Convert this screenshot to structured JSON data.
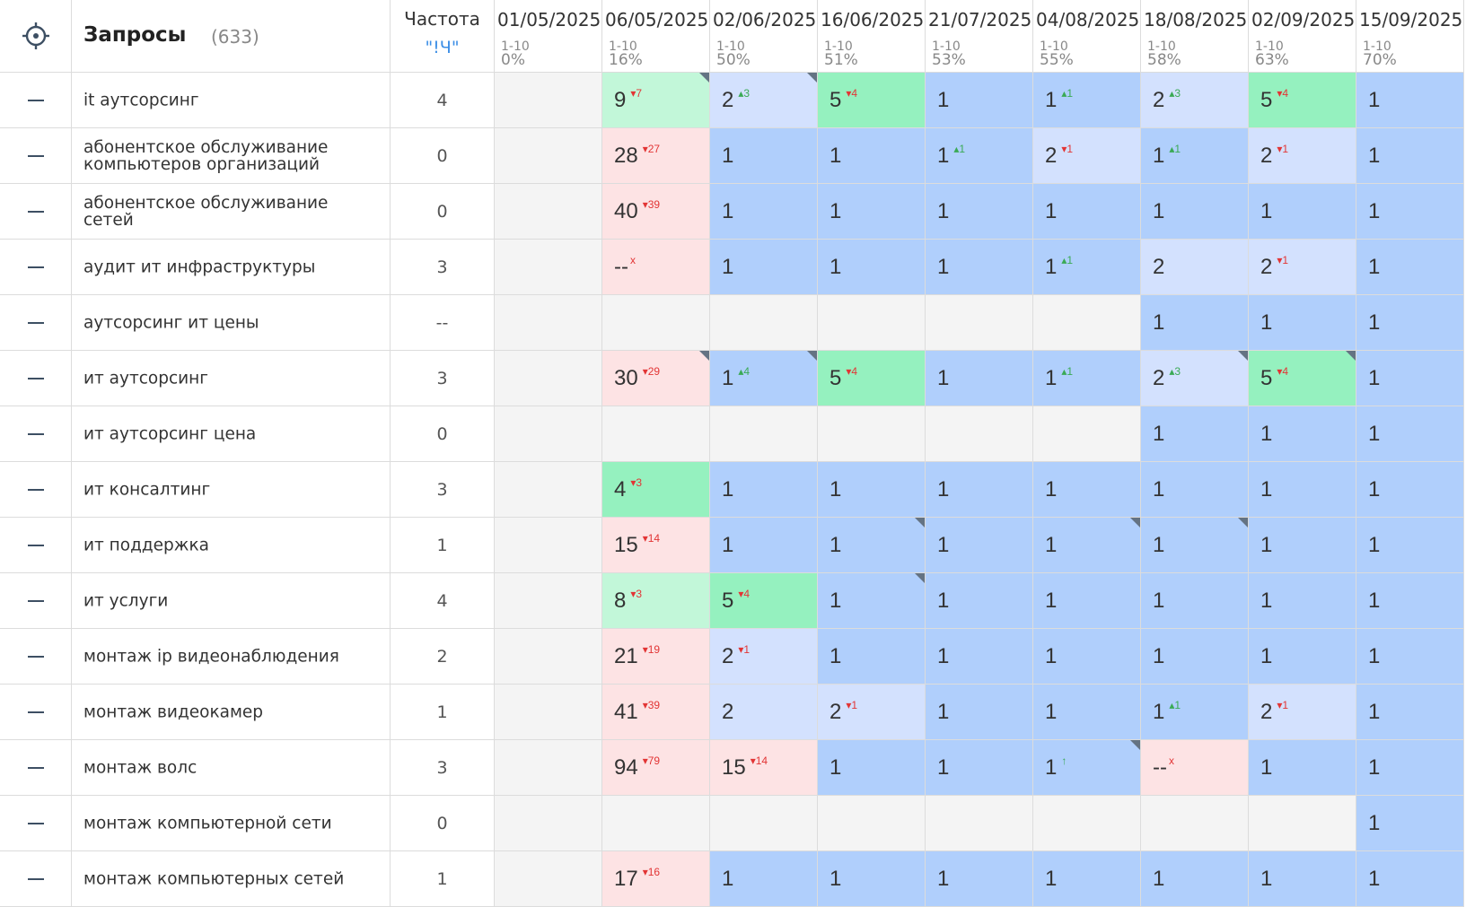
{
  "header": {
    "queries_label": "Запросы",
    "queries_count": "(633)",
    "freq_label": "Частота",
    "freq_sub": "\"!Ч\""
  },
  "colors": {
    "empty": "#f4f4f4",
    "light_red": "#fde3e4",
    "light_green": "#c2f7d9",
    "green": "#95f1bf",
    "light_blue": "#d3e1fe",
    "blue": "#b0cffc",
    "up_delta": "#3aaa55",
    "down_delta": "#e23535"
  },
  "dates": [
    {
      "date": "01/05/2025",
      "range": "1-10",
      "pct": "0%"
    },
    {
      "date": "06/05/2025",
      "range": "1-10",
      "pct": "16%"
    },
    {
      "date": "02/06/2025",
      "range": "1-10",
      "pct": "50%"
    },
    {
      "date": "16/06/2025",
      "range": "1-10",
      "pct": "51%"
    },
    {
      "date": "21/07/2025",
      "range": "1-10",
      "pct": "53%"
    },
    {
      "date": "04/08/2025",
      "range": "1-10",
      "pct": "55%"
    },
    {
      "date": "18/08/2025",
      "range": "1-10",
      "pct": "58%"
    },
    {
      "date": "02/09/2025",
      "range": "1-10",
      "pct": "63%"
    },
    {
      "date": "15/09/2025",
      "range": "1-10",
      "pct": "70%"
    }
  ],
  "rows": [
    {
      "query": "it аутсорсинг",
      "freq": "4",
      "cells": [
        {
          "v": "",
          "bg": "empty"
        },
        {
          "v": "9",
          "d": "7",
          "dir": "down",
          "bg": "light_green",
          "c": true
        },
        {
          "v": "2",
          "d": "3",
          "dir": "up",
          "bg": "light_blue",
          "c": true
        },
        {
          "v": "5",
          "d": "4",
          "dir": "down",
          "bg": "green"
        },
        {
          "v": "1",
          "bg": "blue"
        },
        {
          "v": "1",
          "d": "1",
          "dir": "up",
          "bg": "blue"
        },
        {
          "v": "2",
          "d": "3",
          "dir": "up",
          "bg": "light_blue"
        },
        {
          "v": "5",
          "d": "4",
          "dir": "down",
          "bg": "green"
        },
        {
          "v": "1",
          "bg": "blue"
        }
      ]
    },
    {
      "query": "абонентское обслуживание компьютеров организаций",
      "freq": "0",
      "cells": [
        {
          "v": "",
          "bg": "empty"
        },
        {
          "v": "28",
          "d": "27",
          "dir": "down",
          "bg": "light_red"
        },
        {
          "v": "1",
          "bg": "blue"
        },
        {
          "v": "1",
          "bg": "blue"
        },
        {
          "v": "1",
          "d": "1",
          "dir": "up",
          "bg": "blue"
        },
        {
          "v": "2",
          "d": "1",
          "dir": "down",
          "bg": "light_blue"
        },
        {
          "v": "1",
          "d": "1",
          "dir": "up",
          "bg": "blue"
        },
        {
          "v": "2",
          "d": "1",
          "dir": "down",
          "bg": "light_blue"
        },
        {
          "v": "1",
          "bg": "blue"
        }
      ]
    },
    {
      "query": "абонентское обслуживание сетей",
      "freq": "0",
      "cells": [
        {
          "v": "",
          "bg": "empty"
        },
        {
          "v": "40",
          "d": "39",
          "dir": "down",
          "bg": "light_red"
        },
        {
          "v": "1",
          "bg": "blue"
        },
        {
          "v": "1",
          "bg": "blue"
        },
        {
          "v": "1",
          "bg": "blue"
        },
        {
          "v": "1",
          "bg": "blue"
        },
        {
          "v": "1",
          "bg": "blue"
        },
        {
          "v": "1",
          "bg": "blue"
        },
        {
          "v": "1",
          "bg": "blue"
        }
      ]
    },
    {
      "query": "аудит ит инфраструктуры",
      "freq": "3",
      "cells": [
        {
          "v": "",
          "bg": "empty"
        },
        {
          "v": "--",
          "d": "x",
          "dir": "x",
          "bg": "light_red"
        },
        {
          "v": "1",
          "bg": "blue"
        },
        {
          "v": "1",
          "bg": "blue"
        },
        {
          "v": "1",
          "bg": "blue"
        },
        {
          "v": "1",
          "d": "1",
          "dir": "up",
          "bg": "blue"
        },
        {
          "v": "2",
          "bg": "light_blue"
        },
        {
          "v": "2",
          "d": "1",
          "dir": "down",
          "bg": "light_blue"
        },
        {
          "v": "1",
          "bg": "blue"
        }
      ]
    },
    {
      "query": "аутсорсинг ит цены",
      "freq": "--",
      "cells": [
        {
          "v": "",
          "bg": "empty"
        },
        {
          "v": "",
          "bg": "empty"
        },
        {
          "v": "",
          "bg": "empty"
        },
        {
          "v": "",
          "bg": "empty"
        },
        {
          "v": "",
          "bg": "empty"
        },
        {
          "v": "",
          "bg": "empty"
        },
        {
          "v": "1",
          "bg": "blue"
        },
        {
          "v": "1",
          "bg": "blue"
        },
        {
          "v": "1",
          "bg": "blue"
        }
      ]
    },
    {
      "query": "ит аутсорсинг",
      "freq": "3",
      "cells": [
        {
          "v": "",
          "bg": "empty"
        },
        {
          "v": "30",
          "d": "29",
          "dir": "down",
          "bg": "light_red",
          "c": true
        },
        {
          "v": "1",
          "d": "4",
          "dir": "up",
          "bg": "blue",
          "c": true
        },
        {
          "v": "5",
          "d": "4",
          "dir": "down",
          "bg": "green"
        },
        {
          "v": "1",
          "bg": "blue"
        },
        {
          "v": "1",
          "d": "1",
          "dir": "up",
          "bg": "blue"
        },
        {
          "v": "2",
          "d": "3",
          "dir": "up",
          "bg": "light_blue",
          "c": true
        },
        {
          "v": "5",
          "d": "4",
          "dir": "down",
          "bg": "green",
          "c": true
        },
        {
          "v": "1",
          "bg": "blue"
        }
      ]
    },
    {
      "query": "ит аутсорсинг цена",
      "freq": "0",
      "cells": [
        {
          "v": "",
          "bg": "empty"
        },
        {
          "v": "",
          "bg": "empty"
        },
        {
          "v": "",
          "bg": "empty"
        },
        {
          "v": "",
          "bg": "empty"
        },
        {
          "v": "",
          "bg": "empty"
        },
        {
          "v": "",
          "bg": "empty"
        },
        {
          "v": "1",
          "bg": "blue"
        },
        {
          "v": "1",
          "bg": "blue"
        },
        {
          "v": "1",
          "bg": "blue"
        }
      ]
    },
    {
      "query": "ит консалтинг",
      "freq": "3",
      "cells": [
        {
          "v": "",
          "bg": "empty"
        },
        {
          "v": "4",
          "d": "3",
          "dir": "down",
          "bg": "green"
        },
        {
          "v": "1",
          "bg": "blue"
        },
        {
          "v": "1",
          "bg": "blue"
        },
        {
          "v": "1",
          "bg": "blue"
        },
        {
          "v": "1",
          "bg": "blue"
        },
        {
          "v": "1",
          "bg": "blue"
        },
        {
          "v": "1",
          "bg": "blue"
        },
        {
          "v": "1",
          "bg": "blue"
        }
      ]
    },
    {
      "query": "ит поддержка",
      "freq": "1",
      "cells": [
        {
          "v": "",
          "bg": "empty"
        },
        {
          "v": "15",
          "d": "14",
          "dir": "down",
          "bg": "light_red"
        },
        {
          "v": "1",
          "bg": "blue"
        },
        {
          "v": "1",
          "bg": "blue",
          "c": true
        },
        {
          "v": "1",
          "bg": "blue"
        },
        {
          "v": "1",
          "bg": "blue",
          "c": true
        },
        {
          "v": "1",
          "bg": "blue",
          "c": true
        },
        {
          "v": "1",
          "bg": "blue"
        },
        {
          "v": "1",
          "bg": "blue"
        }
      ]
    },
    {
      "query": "ит услуги",
      "freq": "4",
      "cells": [
        {
          "v": "",
          "bg": "empty"
        },
        {
          "v": "8",
          "d": "3",
          "dir": "down",
          "bg": "light_green"
        },
        {
          "v": "5",
          "d": "4",
          "dir": "down",
          "bg": "green"
        },
        {
          "v": "1",
          "bg": "blue",
          "c": true
        },
        {
          "v": "1",
          "bg": "blue"
        },
        {
          "v": "1",
          "bg": "blue"
        },
        {
          "v": "1",
          "bg": "blue"
        },
        {
          "v": "1",
          "bg": "blue"
        },
        {
          "v": "1",
          "bg": "blue"
        }
      ]
    },
    {
      "query": "монтаж ip видеонаблюдения",
      "freq": "2",
      "cells": [
        {
          "v": "",
          "bg": "empty"
        },
        {
          "v": "21",
          "d": "19",
          "dir": "down",
          "bg": "light_red"
        },
        {
          "v": "2",
          "d": "1",
          "dir": "down",
          "bg": "light_blue"
        },
        {
          "v": "1",
          "bg": "blue"
        },
        {
          "v": "1",
          "bg": "blue"
        },
        {
          "v": "1",
          "bg": "blue"
        },
        {
          "v": "1",
          "bg": "blue"
        },
        {
          "v": "1",
          "bg": "blue"
        },
        {
          "v": "1",
          "bg": "blue"
        }
      ]
    },
    {
      "query": "монтаж видеокамер",
      "freq": "1",
      "cells": [
        {
          "v": "",
          "bg": "empty"
        },
        {
          "v": "41",
          "d": "39",
          "dir": "down",
          "bg": "light_red"
        },
        {
          "v": "2",
          "bg": "light_blue"
        },
        {
          "v": "2",
          "d": "1",
          "dir": "down",
          "bg": "light_blue"
        },
        {
          "v": "1",
          "bg": "blue"
        },
        {
          "v": "1",
          "bg": "blue"
        },
        {
          "v": "1",
          "d": "1",
          "dir": "up",
          "bg": "blue"
        },
        {
          "v": "2",
          "d": "1",
          "dir": "down",
          "bg": "light_blue"
        },
        {
          "v": "1",
          "bg": "blue"
        }
      ]
    },
    {
      "query": "монтаж волс",
      "freq": "3",
      "cells": [
        {
          "v": "",
          "bg": "empty"
        },
        {
          "v": "94",
          "d": "79",
          "dir": "down",
          "bg": "light_red"
        },
        {
          "v": "15",
          "d": "14",
          "dir": "down",
          "bg": "light_red"
        },
        {
          "v": "1",
          "bg": "blue"
        },
        {
          "v": "1",
          "bg": "blue"
        },
        {
          "v": "1",
          "d": "↑",
          "dir": "up",
          "bg": "blue",
          "c": true
        },
        {
          "v": "--",
          "d": "x",
          "dir": "x",
          "bg": "light_red"
        },
        {
          "v": "1",
          "bg": "blue"
        },
        {
          "v": "1",
          "bg": "blue"
        }
      ]
    },
    {
      "query": "монтаж компьютерной сети",
      "freq": "0",
      "cells": [
        {
          "v": "",
          "bg": "empty"
        },
        {
          "v": "",
          "bg": "empty"
        },
        {
          "v": "",
          "bg": "empty"
        },
        {
          "v": "",
          "bg": "empty"
        },
        {
          "v": "",
          "bg": "empty"
        },
        {
          "v": "",
          "bg": "empty"
        },
        {
          "v": "",
          "bg": "empty"
        },
        {
          "v": "",
          "bg": "empty"
        },
        {
          "v": "1",
          "bg": "blue"
        }
      ]
    },
    {
      "query": "монтаж компьютерных сетей",
      "freq": "1",
      "cells": [
        {
          "v": "",
          "bg": "empty"
        },
        {
          "v": "17",
          "d": "16",
          "dir": "down",
          "bg": "light_red"
        },
        {
          "v": "1",
          "bg": "blue"
        },
        {
          "v": "1",
          "bg": "blue"
        },
        {
          "v": "1",
          "bg": "blue"
        },
        {
          "v": "1",
          "bg": "blue"
        },
        {
          "v": "1",
          "bg": "blue"
        },
        {
          "v": "1",
          "bg": "blue"
        },
        {
          "v": "1",
          "bg": "blue"
        }
      ]
    }
  ]
}
